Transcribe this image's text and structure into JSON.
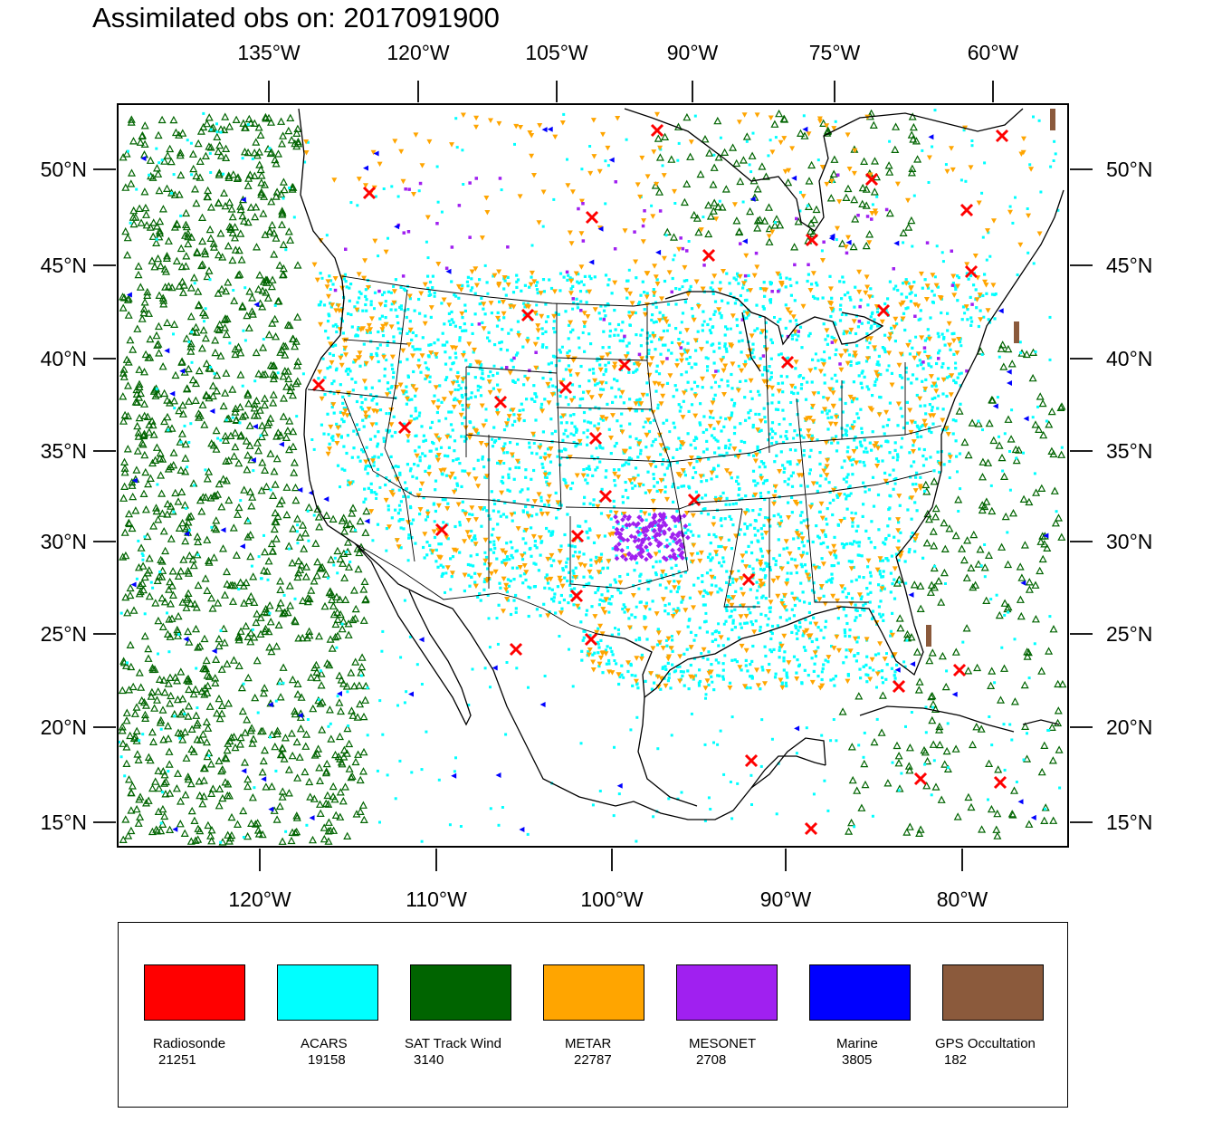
{
  "title": "Assimilated obs on: 2017091900",
  "map": {
    "top_lon_ticks": [
      "135°W",
      "120°W",
      "105°W",
      "90°W",
      "75°W",
      "60°W"
    ],
    "bottom_lon_ticks": [
      "120°W",
      "110°W",
      "100°W",
      "90°W",
      "80°W"
    ],
    "lat_ticks": [
      "50°N",
      "45°N",
      "40°N",
      "35°N",
      "30°N",
      "25°N",
      "20°N",
      "15°N"
    ]
  },
  "legend": [
    {
      "label": "Radiosonde",
      "count": "21251",
      "color": "#ff0000"
    },
    {
      "label": "ACARS",
      "count": "19158",
      "color": "#00ffff"
    },
    {
      "label": "SAT Track Wind",
      "count": "3140",
      "color": "#006400"
    },
    {
      "label": "METAR",
      "count": "22787",
      "color": "#ffa500"
    },
    {
      "label": "MESONET",
      "count": "2708",
      "color": "#a020f0"
    },
    {
      "label": "Marine",
      "count": "3805",
      "color": "#0000ff"
    },
    {
      "label": "GPS Occultation",
      "count": "182",
      "color": "#8b5a3c"
    }
  ]
}
